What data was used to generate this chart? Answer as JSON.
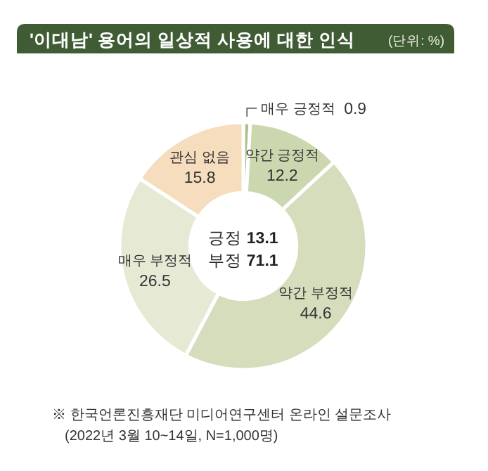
{
  "chart_data": {
    "type": "donut",
    "title": "'이대남' 용어의 일상적 사용에 대한 인식",
    "subtitle": "(단위: %)",
    "categories": [
      "매우 긍정적",
      "약간 긍정적",
      "약간 부정적",
      "매우 부정적",
      "관심 없음"
    ],
    "values": [
      0.9,
      12.2,
      44.6,
      26.5,
      15.8
    ],
    "colors": [
      "#a9bf8a",
      "#cbd8af",
      "#d6ddbd",
      "#e6ead5",
      "#f5ddbd"
    ],
    "data_labels": true,
    "annotations": [
      "긍정 **13.1**",
      "부정 **71.1**",
      "※ 한국언론진흥재단 미디어연구센터 온라인 설문조사",
      "(2022년 3월 10~14일, N=1,000명)"
    ]
  }
}
